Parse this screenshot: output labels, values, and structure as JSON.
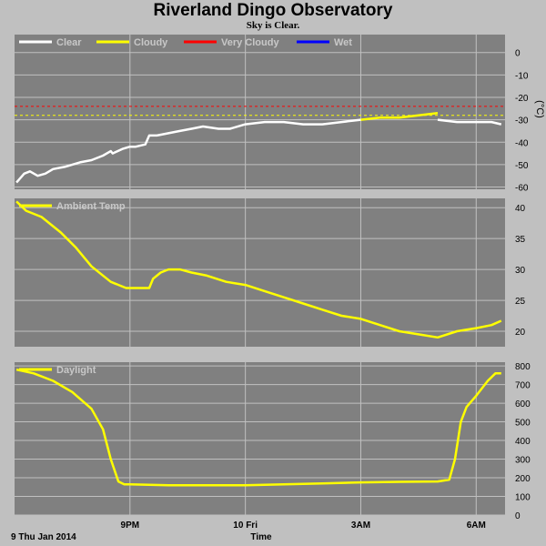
{
  "title": "Riverland Dingo Observatory",
  "subtitle": "Sky is Clear.",
  "colors": {
    "panel": "#808080",
    "grid": "#c0c0c0",
    "clear": "#ffffff",
    "cloudy": "#ffff00",
    "very_cloudy": "#ff0000",
    "wet": "#0000ff"
  },
  "x_axis": {
    "label": "Time",
    "date_label": "9 Thu Jan 2014",
    "range_hours": [
      18.0,
      30.75
    ],
    "ticks": [
      {
        "hour": 21,
        "label": "9PM"
      },
      {
        "hour": 24,
        "label": "10 Fri"
      },
      {
        "hour": 27,
        "label": "3AM"
      },
      {
        "hour": 30,
        "label": "6AM"
      }
    ]
  },
  "chart_data": [
    {
      "type": "line",
      "name": "cloud",
      "unit": "(°C)",
      "ylim": [
        -61,
        8
      ],
      "yticks": [
        0,
        -10,
        -20,
        -30,
        -40,
        -50,
        -60
      ],
      "legend": [
        "Clear",
        "Cloudy",
        "Very Cloudy",
        "Wet"
      ],
      "thresholds": [
        {
          "value": -24,
          "condition": "Very Cloudy"
        },
        {
          "value": -28,
          "condition": "Cloudy"
        }
      ],
      "series": [
        {
          "name": "Clear",
          "x": [
            18.05,
            18.25,
            18.4,
            18.6,
            18.8,
            19.0,
            19.3,
            19.7,
            20.0,
            20.3,
            20.5,
            20.55,
            20.8,
            21.0,
            21.15,
            21.4,
            21.5,
            21.7,
            22.0,
            22.3,
            22.6,
            22.9,
            23.3,
            23.6,
            24.0,
            24.5,
            25.0,
            25.5,
            26.0,
            26.5,
            27.0
          ],
          "y": [
            -58,
            -54,
            -53,
            -55,
            -54,
            -52,
            -51,
            -49,
            -48,
            -46,
            -44,
            -45,
            -43,
            -42,
            -42,
            -41,
            -37,
            -37,
            -36,
            -35,
            -34,
            -33,
            -34,
            -34,
            -32,
            -31,
            -31,
            -32,
            -32,
            -31,
            -30
          ]
        },
        {
          "name": "Cloudy",
          "x": [
            27.0,
            27.5,
            28.0,
            28.5,
            29.0
          ],
          "y": [
            -30,
            -29,
            -29,
            -28,
            -27
          ]
        },
        {
          "name": "Clear",
          "x": [
            29.0,
            29.5,
            30.0,
            30.4,
            30.65
          ],
          "y": [
            -30,
            -31,
            -31,
            -31,
            -32
          ]
        }
      ]
    },
    {
      "type": "line",
      "name": "ambient",
      "ylim": [
        17.5,
        41.5
      ],
      "yticks": [
        40,
        35,
        30,
        25,
        20
      ],
      "series": [
        {
          "name": "Ambient Temp",
          "x": [
            18.05,
            18.3,
            18.7,
            19.2,
            19.6,
            20.0,
            20.5,
            20.9,
            21.5,
            21.6,
            21.8,
            22.0,
            22.3,
            22.6,
            23.0,
            23.5,
            24.0,
            24.5,
            25.0,
            25.5,
            26.0,
            26.5,
            27.0,
            27.5,
            28.0,
            28.5,
            29.0,
            29.5,
            30.0,
            30.4,
            30.65
          ],
          "y": [
            41,
            39.5,
            38.5,
            36,
            33.5,
            30.5,
            28,
            27,
            27,
            28.5,
            29.5,
            30,
            30,
            29.5,
            29,
            28,
            27.5,
            26.5,
            25.5,
            24.5,
            23.5,
            22.5,
            22,
            21,
            20,
            19.5,
            19,
            20,
            20.5,
            21,
            21.7
          ]
        }
      ]
    },
    {
      "type": "line",
      "name": "daylight",
      "ylim": [
        0,
        820
      ],
      "yticks": [
        800,
        700,
        600,
        500,
        400,
        300,
        200,
        100,
        0
      ],
      "series": [
        {
          "name": "Daylight",
          "x": [
            18.05,
            18.5,
            19.0,
            19.5,
            20.0,
            20.3,
            20.5,
            20.7,
            20.85,
            21.0,
            22.0,
            23.0,
            24.0,
            25.0,
            26.0,
            27.0,
            28.0,
            29.0,
            29.3,
            29.45,
            29.6,
            29.75,
            30.0,
            30.3,
            30.5,
            30.65
          ],
          "y": [
            780,
            760,
            720,
            660,
            570,
            460,
            300,
            180,
            165,
            165,
            160,
            160,
            160,
            165,
            170,
            175,
            178,
            180,
            190,
            300,
            500,
            580,
            640,
            720,
            760,
            760
          ]
        }
      ]
    }
  ]
}
